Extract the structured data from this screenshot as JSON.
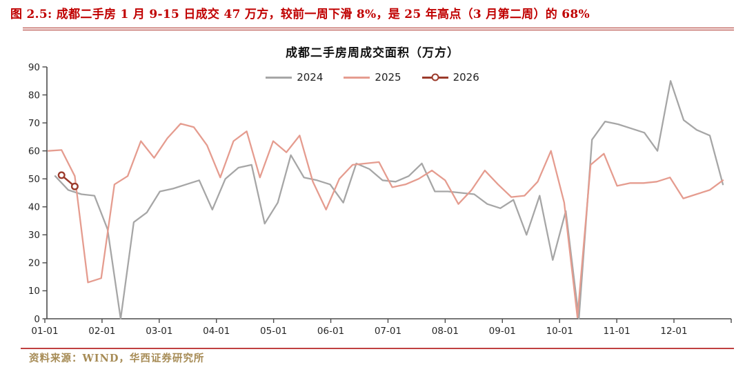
{
  "header": {
    "title": "图 2.5:  成都二手房 1 月 9-15 日成交 47 万方，较前一周下滑 8%，是 25 年高点（3 月第二周）的 68%"
  },
  "footer": {
    "source": "资料来源：WIND，华西证券研究所"
  },
  "colors": {
    "figure_title": "#C00000",
    "header_rule": "#A82A22",
    "bottom_rule": "#C04040",
    "source_text": "#A68B55",
    "axis": "#4A4A4A",
    "tick_label": "#262626"
  },
  "chart_data": {
    "type": "line",
    "title": "成都二手房周成交面积（万方）",
    "xlabel": "",
    "ylabel": "",
    "ylim": [
      0,
      90
    ],
    "grid": "off",
    "legend_position": "top-center",
    "y_ticks": [
      0,
      10,
      20,
      30,
      40,
      50,
      60,
      70,
      80,
      90
    ],
    "x_tick_labels": [
      "01-01",
      "02-01",
      "03-01",
      "04-01",
      "05-01",
      "06-01",
      "07-01",
      "08-01",
      "09-01",
      "10-01",
      "11-01",
      "12-01"
    ],
    "series": [
      {
        "name": "2024",
        "color": "#A6A6A6",
        "marker": "none",
        "values": [
          51,
          46,
          44.5,
          44,
          32,
          0,
          34.5,
          38,
          45.5,
          46.5,
          48,
          49.5,
          39,
          50,
          54,
          55,
          34,
          41.5,
          58.5,
          50.5,
          49.5,
          48,
          41.5,
          55.5,
          53.5,
          49.5,
          49,
          51,
          55.5,
          45.5,
          45.5,
          45,
          44.5,
          41,
          39.5,
          42.5,
          30,
          44,
          21,
          38.5,
          0,
          64,
          70.5,
          69.5,
          68,
          66.5,
          60,
          85,
          71,
          67.5,
          65.5,
          48
        ]
      },
      {
        "name": "2025",
        "color": "#E59C8F",
        "marker": "none",
        "values": [
          60,
          60.3,
          51,
          13,
          14.5,
          48,
          51,
          63.5,
          57.5,
          64.5,
          69.7,
          68.5,
          62,
          50.5,
          63.5,
          67,
          50.5,
          63.5,
          59.5,
          65.5,
          49,
          39,
          50,
          55,
          55.5,
          56,
          47,
          48,
          50,
          53,
          49.5,
          41,
          46,
          53,
          48,
          43.5,
          44,
          49,
          60,
          41.5,
          0.5,
          55,
          59,
          47.5,
          48.5,
          48.5,
          49,
          50.5,
          43,
          44.5,
          46,
          49.5
        ]
      },
      {
        "name": "2026",
        "color": "#9B3A2B",
        "marker": "circle",
        "x_indices": [
          1,
          2
        ],
        "values": [
          51.3,
          47.3
        ]
      }
    ]
  }
}
